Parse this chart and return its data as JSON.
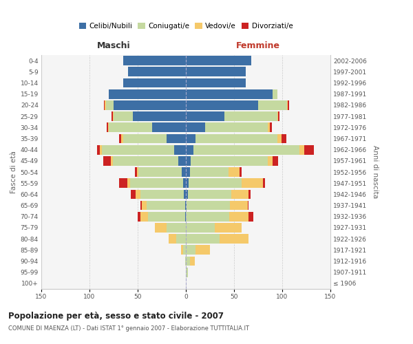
{
  "age_groups": [
    "100+",
    "95-99",
    "90-94",
    "85-89",
    "80-84",
    "75-79",
    "70-74",
    "65-69",
    "60-64",
    "55-59",
    "50-54",
    "45-49",
    "40-44",
    "35-39",
    "30-34",
    "25-29",
    "20-24",
    "15-19",
    "10-14",
    "5-9",
    "0-4"
  ],
  "birth_years": [
    "≤ 1906",
    "1907-1911",
    "1912-1916",
    "1917-1921",
    "1922-1926",
    "1927-1931",
    "1932-1936",
    "1937-1941",
    "1942-1946",
    "1947-1951",
    "1952-1956",
    "1957-1961",
    "1962-1966",
    "1967-1971",
    "1972-1976",
    "1977-1981",
    "1982-1986",
    "1987-1991",
    "1992-1996",
    "1997-2001",
    "2002-2006"
  ],
  "males": {
    "celibe": [
      0,
      0,
      0,
      0,
      0,
      0,
      1,
      1,
      2,
      3,
      4,
      8,
      12,
      20,
      35,
      55,
      75,
      80,
      65,
      60,
      65
    ],
    "coniugato": [
      0,
      0,
      1,
      3,
      10,
      20,
      38,
      40,
      45,
      55,
      45,
      68,
      75,
      45,
      45,
      20,
      8,
      0,
      0,
      0,
      0
    ],
    "vedovo": [
      0,
      0,
      0,
      2,
      8,
      12,
      8,
      5,
      5,
      3,
      2,
      2,
      2,
      2,
      1,
      1,
      1,
      0,
      0,
      0,
      0
    ],
    "divorziato": [
      0,
      0,
      0,
      0,
      0,
      0,
      3,
      1,
      5,
      8,
      2,
      8,
      3,
      2,
      1,
      1,
      1,
      0,
      0,
      0,
      0
    ]
  },
  "females": {
    "nubile": [
      0,
      0,
      0,
      0,
      0,
      0,
      0,
      1,
      2,
      3,
      4,
      5,
      8,
      10,
      20,
      40,
      75,
      90,
      62,
      62,
      68
    ],
    "coniugata": [
      0,
      2,
      4,
      10,
      35,
      30,
      45,
      45,
      45,
      55,
      40,
      80,
      110,
      85,
      65,
      55,
      30,
      5,
      0,
      0,
      0
    ],
    "vedova": [
      0,
      0,
      5,
      15,
      30,
      28,
      20,
      18,
      18,
      22,
      12,
      5,
      5,
      4,
      2,
      1,
      1,
      0,
      0,
      0,
      0
    ],
    "divorziata": [
      0,
      0,
      0,
      0,
      0,
      0,
      5,
      1,
      2,
      2,
      2,
      6,
      10,
      5,
      2,
      1,
      1,
      0,
      0,
      0,
      0
    ]
  },
  "color_celibe": "#3d6fa5",
  "color_coniugato": "#c5d9a0",
  "color_vedovo": "#f5c96a",
  "color_divorziato": "#cc2222",
  "title": "Popolazione per età, sesso e stato civile - 2007",
  "subtitle": "COMUNE DI MAENZA (LT) - Dati ISTAT 1° gennaio 2007 - Elaborazione TUTTITALIA.IT",
  "xlabel_left": "Maschi",
  "xlabel_right": "Femmine",
  "ylabel_left": "Fasce di età",
  "ylabel_right": "Anni di nascita",
  "xlim": 150,
  "bg_color": "#ffffff",
  "plot_bg": "#f5f5f5",
  "grid_color": "#cccccc"
}
